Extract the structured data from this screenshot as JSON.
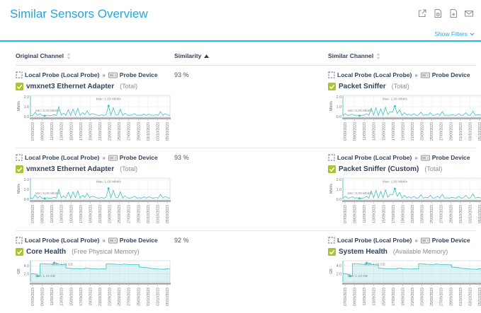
{
  "page": {
    "title": "Similar Sensors Overview",
    "show_filters_label": "Show Filters",
    "crumb_sep": "»"
  },
  "colors": {
    "accent_cyan": "#28a5d6",
    "rule_cyan": "#2cb5dc",
    "navy_text": "#32435e",
    "check_green": "#a9c42e",
    "chart_teal": "#3fbfbf"
  },
  "toolbar": {
    "icons": [
      "external-link-icon",
      "report-icon",
      "add-report-icon",
      "email-icon"
    ]
  },
  "table": {
    "headers": {
      "original": "Original Channel",
      "similarity": "Similarity",
      "similar": "Similar Channel"
    },
    "sort": {
      "column": "similarity",
      "direction": "asc"
    }
  },
  "chart_dates": [
    "07/09/2023",
    "09/09/2023",
    "11/09/2023",
    "13/09/2023",
    "15/09/2023",
    "17/09/2023",
    "19/09/2023",
    "21/09/2023",
    "23/09/2023",
    "25/09/2023",
    "27/09/2023",
    "29/09/2023",
    "01/10/2023",
    "03/10/2023",
    "05/10/2023"
  ],
  "charts": {
    "traffic_a": {
      "type": "spike-line",
      "unit": "Mbit/s",
      "ylim": [
        0,
        2.15
      ],
      "yticks": [
        {
          "v": 0,
          "label": "0.0"
        },
        {
          "v": 1,
          "label": "1.0"
        },
        {
          "v": 2,
          "label": "2.0"
        }
      ],
      "min_label": "Min: 0,08 Mbit/s",
      "max_label": "Max: 1,09 Mbit/s",
      "min_index": 6,
      "max_index": 33,
      "color": "#3fbfbf",
      "values": [
        0.12,
        0.1,
        0.45,
        0.12,
        0.3,
        0.1,
        0.08,
        0.15,
        0.1,
        0.12,
        0.2,
        0.12,
        1.0,
        0.15,
        0.35,
        0.12,
        0.7,
        0.12,
        0.75,
        0.15,
        0.85,
        0.12,
        0.4,
        0.2,
        0.6,
        0.15,
        0.3,
        0.25,
        0.15,
        0.12,
        0.18,
        0.12,
        0.2,
        1.09,
        0.15,
        0.9,
        0.2,
        0.15,
        0.75,
        0.12,
        0.35,
        0.15,
        0.12,
        0.18,
        0.3,
        0.12,
        0.15,
        0.12,
        0.25,
        0.12,
        0.25,
        0.15,
        0.12,
        0.18,
        0.12,
        0.5,
        0.12,
        0.3,
        0.15,
        0.12
      ]
    },
    "traffic_b": {
      "type": "spike-line",
      "unit": "Mbit/s",
      "ylim": [
        0,
        2.15
      ],
      "yticks": [
        {
          "v": 0,
          "label": "0.0"
        },
        {
          "v": 1,
          "label": "1.0"
        },
        {
          "v": 2,
          "label": "2.0"
        }
      ],
      "min_label": "Min: 0,09 Mbit/s",
      "max_label": "Max: 1,06 Mbit/s",
      "min_index": 7,
      "max_index": 22,
      "color": "#3fbfbf",
      "values": [
        0.12,
        0.3,
        0.12,
        0.15,
        0.25,
        0.12,
        0.15,
        0.09,
        0.12,
        0.15,
        0.3,
        0.12,
        0.85,
        0.15,
        0.9,
        0.12,
        0.8,
        0.15,
        0.95,
        0.2,
        0.5,
        0.45,
        1.06,
        0.3,
        0.7,
        0.12,
        0.4,
        0.15,
        0.25,
        0.12,
        0.3,
        0.12,
        0.15,
        0.45,
        0.12,
        0.2,
        0.15,
        0.4,
        0.12,
        0.15,
        0.3,
        0.12,
        0.5,
        0.12,
        0.15,
        0.12,
        0.2,
        0.15,
        0.12,
        0.3,
        0.12,
        0.15,
        0.4,
        0.12,
        0.15,
        0.55,
        0.12,
        0.2,
        0.15,
        0.12
      ]
    },
    "mem_a": {
      "type": "step-area",
      "unit": "GB",
      "ylim": [
        0,
        5.3
      ],
      "yticks": [
        {
          "v": 2,
          "label": "2.0"
        },
        {
          "v": 4,
          "label": "4.0"
        }
      ],
      "min_label": "Min: 1,43 GB",
      "max_label": "Max: 4,76 GB",
      "min_index": 3,
      "max_index": 10,
      "color": "#3fbfbf",
      "values": [
        2.05,
        2.0,
        1.95,
        1.43,
        4.5,
        4.55,
        4.5,
        4.45,
        4.45,
        4.4,
        4.76,
        4.6,
        4.35,
        4.3,
        4.3,
        3.45,
        3.4,
        3.35,
        3.3,
        3.35,
        3.3,
        3.25,
        3.3,
        3.45,
        3.4,
        3.3,
        3.25,
        3.3,
        3.2,
        3.25,
        3.3,
        3.25,
        4.55,
        4.5,
        4.45,
        4.45,
        4.4,
        4.4,
        4.35,
        4.45,
        4.4,
        4.35,
        4.3,
        4.35,
        4.3,
        4.3,
        3.7,
        3.65,
        3.6,
        3.55,
        3.4,
        3.35,
        3.3,
        3.25,
        3.2,
        3.2,
        3.15,
        3.3,
        3.25,
        3.2
      ]
    },
    "mem_b": {
      "type": "step-area",
      "unit": "GB",
      "ylim": [
        0,
        5.3
      ],
      "yticks": [
        {
          "v": 2,
          "label": "2.0"
        },
        {
          "v": 4,
          "label": "4.0"
        }
      ],
      "min_label": "Min: 1,43 GB",
      "max_label": "Max: 4,75 GB",
      "min_index": 3,
      "max_index": 10,
      "color": "#3fbfbf",
      "values": [
        2.05,
        2.0,
        1.9,
        1.43,
        4.5,
        4.55,
        4.5,
        4.45,
        4.4,
        4.4,
        4.75,
        4.6,
        4.35,
        4.3,
        4.25,
        3.45,
        3.4,
        3.35,
        3.3,
        3.3,
        3.3,
        3.25,
        3.3,
        3.45,
        3.4,
        3.3,
        3.25,
        3.25,
        3.2,
        3.25,
        3.3,
        3.25,
        4.55,
        4.5,
        4.45,
        4.4,
        4.4,
        4.35,
        4.35,
        4.45,
        4.4,
        4.35,
        4.3,
        4.3,
        4.3,
        4.25,
        3.7,
        3.65,
        3.6,
        3.5,
        3.4,
        3.35,
        3.3,
        3.25,
        3.2,
        3.2,
        3.15,
        3.3,
        3.25,
        3.2
      ]
    }
  },
  "rows": [
    {
      "similarity": "93 %",
      "original": {
        "probe": "Local Probe (Local Probe)",
        "device": "Probe Device",
        "sensor": "vmxnet3 Ethernet Adapter",
        "channel": "(Total)",
        "chart": "traffic_a"
      },
      "similar": {
        "probe": "Local Probe (Local Probe)",
        "device": "Probe Device",
        "sensor": "Packet Sniffer",
        "channel": "(Total)",
        "chart": "traffic_b"
      }
    },
    {
      "similarity": "93 %",
      "original": {
        "probe": "Local Probe (Local Probe)",
        "device": "Probe Device",
        "sensor": "vmxnet3 Ethernet Adapter",
        "channel": "(Total)",
        "chart": "traffic_a"
      },
      "similar": {
        "probe": "Local Probe (Local Probe)",
        "device": "Probe Device",
        "sensor": "Packet Sniffer (Custom)",
        "channel": "(Total)",
        "chart": "traffic_b"
      }
    },
    {
      "similarity": "92 %",
      "original": {
        "probe": "Local Probe (Local Probe)",
        "device": "Probe Device",
        "sensor": "Core Health",
        "channel": "(Free Physical Memory)",
        "chart": "mem_a"
      },
      "similar": {
        "probe": "Local Probe (Local Probe)",
        "device": "Probe Device",
        "sensor": "System Health",
        "channel": "(Available Memory)",
        "chart": "mem_b"
      }
    }
  ]
}
